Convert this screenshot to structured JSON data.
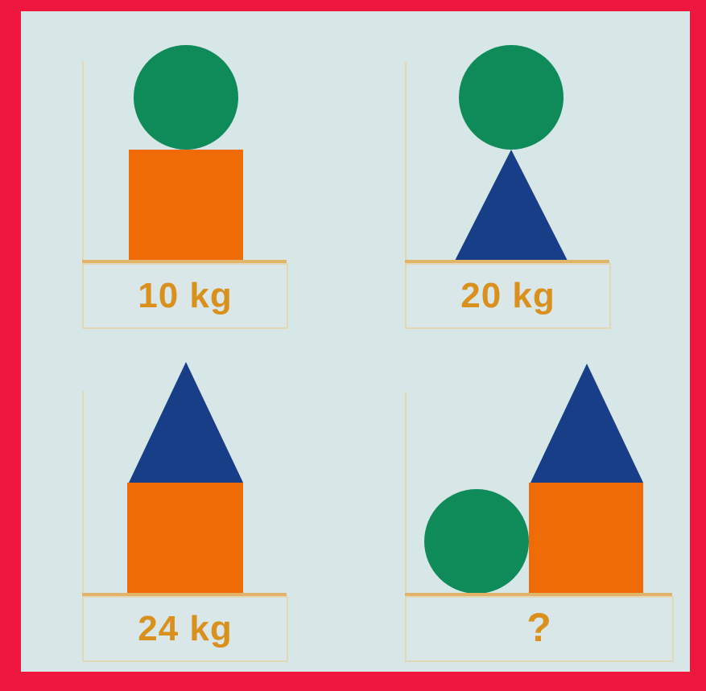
{
  "puzzle": {
    "panels": [
      {
        "shapes": [
          "circle",
          "square"
        ],
        "label": "10 kg"
      },
      {
        "shapes": [
          "circle",
          "triangle"
        ],
        "label": "20 kg"
      },
      {
        "shapes": [
          "triangle",
          "square"
        ],
        "label": "24 kg"
      },
      {
        "shapes": [
          "circle",
          "square",
          "triangle"
        ],
        "label": "?"
      }
    ]
  },
  "colors": {
    "border": "#f0173f",
    "background": "#d7e6e7",
    "circle": "#0f8b5a",
    "square": "#ee6b05",
    "triangle": "#173e86",
    "label": "#d9901c"
  }
}
